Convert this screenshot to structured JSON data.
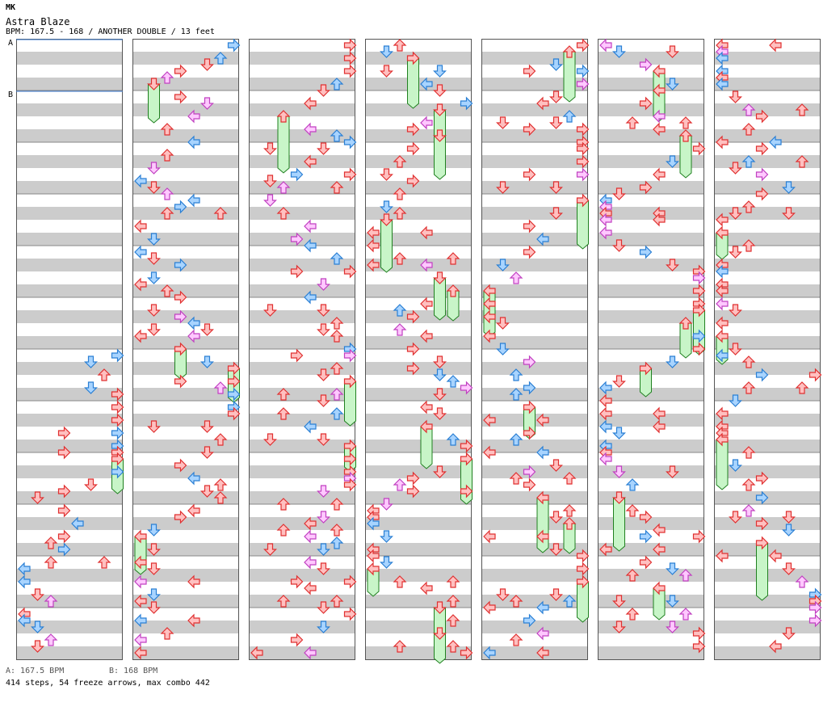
{
  "header": {
    "initials": "MK",
    "title": "Astra Blaze",
    "meta": "BPM: 167.5 - 168 / ANOTHER DOUBLE / 13 feet"
  },
  "markers": [
    {
      "label": "A",
      "bpm_note": "A: 167.5 BPM"
    },
    {
      "label": "B",
      "bpm_note": "B: 168 BPM"
    }
  ],
  "footer": {
    "summary": "414 steps, 54 freeze arrows, max combo 442"
  },
  "chart": {
    "columns": 7,
    "measures_per_column": 12,
    "lanes": 8,
    "colors": {
      "red_fill": "#ffc0c0",
      "red_stroke": "#e03030",
      "blue_fill": "#a8d4ff",
      "blue_stroke": "#2a7fd4",
      "pink_fill": "#ffc8ff",
      "pink_stroke": "#c040c0",
      "freeze_fill": "#c8f5c8",
      "freeze_stroke": "#208020",
      "stripe": "#cccccc",
      "grid_border": "#555555",
      "marker_line": "#3a7ad0"
    }
  }
}
